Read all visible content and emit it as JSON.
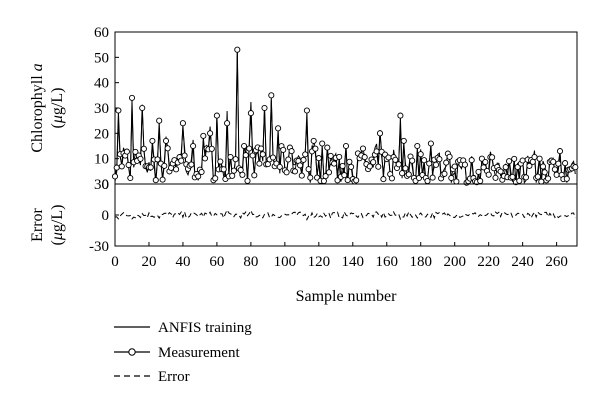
{
  "chart_data": [
    {
      "id": "chlorophyll",
      "type": "line",
      "ylabel_line1_prefix": "Chlorophyll ",
      "ylabel_line1_italic": "a",
      "ylabel_line2_italic": "μ",
      "ylabel_line2_rest": "g/L)",
      "ylabel_line2_open": "(",
      "ylim": [
        0,
        60
      ],
      "yticks": [
        0,
        10,
        20,
        30,
        40,
        50,
        60
      ],
      "series": [
        {
          "name": "Measurement",
          "markers": "circle",
          "peaks": [
            [
              2,
              29
            ],
            [
              10,
              34
            ],
            [
              16,
              30
            ],
            [
              22,
              17
            ],
            [
              26,
              25
            ],
            [
              30,
              17
            ],
            [
              40,
              24
            ],
            [
              46,
              15
            ],
            [
              52,
              19
            ],
            [
              56,
              20
            ],
            [
              60,
              27
            ],
            [
              66,
              24
            ],
            [
              72,
              53
            ],
            [
              76,
              15
            ],
            [
              80,
              28
            ],
            [
              86,
              14
            ],
            [
              88,
              30
            ],
            [
              92,
              35
            ],
            [
              96,
              22
            ],
            [
              104,
              13
            ],
            [
              113,
              29
            ],
            [
              117,
              17
            ],
            [
              122,
              16
            ],
            [
              136,
              15
            ],
            [
              146,
              14
            ],
            [
              156,
              20
            ],
            [
              168,
              27
            ],
            [
              170,
              17
            ],
            [
              178,
              15
            ],
            [
              186,
              16
            ],
            [
              196,
              12
            ],
            [
              216,
              10
            ],
            [
              232,
              9
            ],
            [
              250,
              10
            ],
            [
              262,
              13
            ],
            [
              270,
              7
            ]
          ]
        },
        {
          "name": "ANFIS training",
          "markers": "none"
        }
      ]
    },
    {
      "id": "error",
      "type": "line",
      "ylabel_line1": "Error",
      "ylabel_line2_open": "(",
      "ylabel_line2_italic": "μ",
      "ylabel_line2_rest": "g/L)",
      "ylim": [
        -30,
        30
      ],
      "yticks": [
        -30,
        0,
        30
      ],
      "series": [
        {
          "name": "Error",
          "style": "dashed",
          "amplitude_range": [
            -8,
            8
          ]
        }
      ]
    }
  ],
  "shared_x": {
    "label": "Sample number",
    "xlim": [
      0,
      272
    ],
    "xticks": [
      0,
      20,
      40,
      60,
      80,
      100,
      120,
      140,
      160,
      180,
      200,
      220,
      240,
      260
    ]
  },
  "legend": {
    "placement": "bottom-center",
    "entries": [
      "ANFIS training",
      "Measurement",
      "Error"
    ]
  }
}
